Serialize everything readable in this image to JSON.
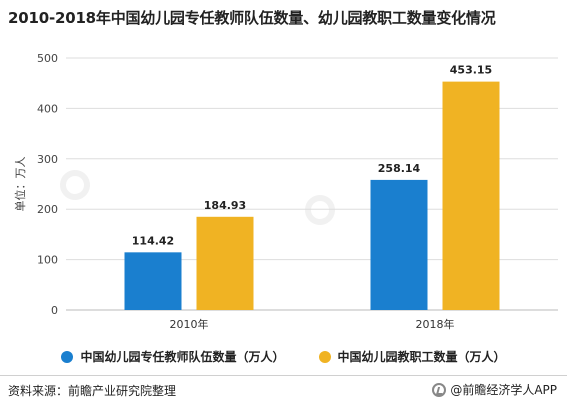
{
  "title": "2010-2018年中国幼儿园专任教师队伍数量、幼儿园教职工数量变化情况",
  "chart_data": {
    "type": "bar",
    "categories": [
      "2010年",
      "2018年"
    ],
    "series": [
      {
        "name": "中国幼儿园专任教师队伍数量（万人）",
        "color": "#1a7fcf",
        "values": [
          114.42,
          258.14
        ],
        "labels": [
          "114.42",
          "258.14"
        ]
      },
      {
        "name": "中国幼儿园教职工数量（万人）",
        "color": "#f0b323",
        "values": [
          184.93,
          453.15
        ],
        "labels": [
          "184.93",
          "453.15"
        ]
      }
    ],
    "ylabel": "单位：万人",
    "ylim": [
      0,
      500
    ],
    "yticks": [
      0,
      100,
      200,
      300,
      400,
      500
    ],
    "grid": true
  },
  "legend": {
    "teachers": "中国幼儿园专任教师队伍数量（万人）",
    "staff": "中国幼儿园教职工数量（万人）"
  },
  "footer": {
    "source": "资料来源：前瞻产业研究院整理",
    "brand": "@前瞻经济学人APP"
  }
}
